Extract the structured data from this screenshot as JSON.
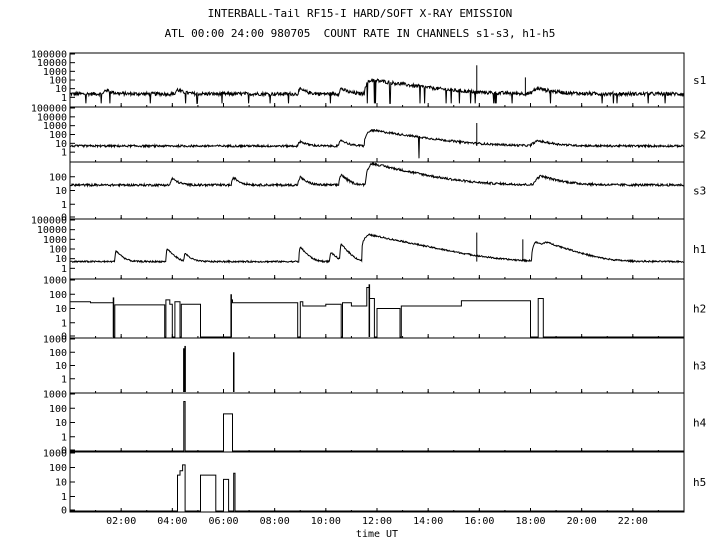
{
  "title": "INTERBALL-Tail RF15-I HARD/SOFT X-RAY EMISSION",
  "subtitle": "ATL 00:00 24:00 980705  COUNT RATE IN CHANNELS s1-s3, h1-h5",
  "chart_data": {
    "type": "line",
    "title": "INTERBALL-Tail RF15-I HARD/SOFT X-RAY EMISSION",
    "subtitle": "ATL 00:00 24:00 980705  COUNT RATE IN CHANNELS s1-s3, h1-h5",
    "xlabel": "time UT",
    "xlim_hours": [
      0,
      24
    ],
    "x_ticks": [
      "02:00",
      "04:00",
      "06:00",
      "08:00",
      "10:00",
      "12:00",
      "14:00",
      "16:00",
      "18:00",
      "20:00",
      "22:00"
    ],
    "x_tick_hours": [
      2,
      4,
      6,
      8,
      10,
      12,
      14,
      16,
      18,
      20,
      22
    ],
    "y_scale": "log",
    "grid": false,
    "panels": [
      {
        "name": "s1",
        "ylim": [
          0.1,
          100000
        ],
        "y_ticks": [
          "1",
          "10",
          "100",
          "1000",
          "10000",
          "100000"
        ],
        "style": "noisy",
        "base": 2.5,
        "noise": 1.6,
        "dip_rate": 0.02,
        "events": [
          {
            "t": 1.4,
            "peak": 5,
            "rise": 0.1,
            "decay": 0.2
          },
          {
            "t": 4.2,
            "peak": 5,
            "rise": 0.1,
            "decay": 0.2
          },
          {
            "t": 9.0,
            "peak": 6,
            "rise": 0.1,
            "decay": 0.2
          },
          {
            "t": 10.6,
            "peak": 8,
            "rise": 0.1,
            "decay": 0.2
          },
          {
            "t": 11.8,
            "peak": 100,
            "rise": 0.3,
            "decay": 1.0
          },
          {
            "t": 18.3,
            "peak": 8,
            "rise": 0.3,
            "decay": 0.5
          }
        ],
        "spikes": [
          {
            "t": 15.9,
            "v": 5000
          },
          {
            "t": 17.8,
            "v": 200
          }
        ]
      },
      {
        "name": "s2",
        "ylim": [
          0.1,
          100000
        ],
        "y_ticks": [
          "1",
          "10",
          "100",
          "1000",
          "10000",
          "100000"
        ],
        "style": "noisy",
        "base": 5,
        "noise": 1.3,
        "dip_rate": 0.002,
        "events": [
          {
            "t": 9.0,
            "peak": 12,
            "rise": 0.1,
            "decay": 0.2
          },
          {
            "t": 10.6,
            "peak": 18,
            "rise": 0.1,
            "decay": 0.2
          },
          {
            "t": 11.8,
            "peak": 300,
            "rise": 0.3,
            "decay": 1.0
          },
          {
            "t": 18.3,
            "peak": 14,
            "rise": 0.3,
            "decay": 0.5
          }
        ],
        "spikes": [
          {
            "t": 15.9,
            "v": 2000
          }
        ]
      },
      {
        "name": "s3",
        "ylim": [
          0.1,
          1000
        ],
        "y_ticks": [
          "0",
          "1",
          "10",
          "100"
        ],
        "style": "noisy",
        "base": 25,
        "noise": 1.2,
        "dip_rate": 0.0,
        "events": [
          {
            "t": 4.0,
            "peak": 50,
            "rise": 0.1,
            "decay": 0.2
          },
          {
            "t": 6.4,
            "peak": 60,
            "rise": 0.1,
            "decay": 0.2
          },
          {
            "t": 9.0,
            "peak": 70,
            "rise": 0.1,
            "decay": 0.2
          },
          {
            "t": 10.6,
            "peak": 120,
            "rise": 0.1,
            "decay": 0.2
          },
          {
            "t": 11.8,
            "peak": 900,
            "rise": 0.25,
            "decay": 1.0
          },
          {
            "t": 18.4,
            "peak": 90,
            "rise": 0.3,
            "decay": 0.6
          }
        ],
        "spikes": []
      },
      {
        "name": "h1",
        "ylim": [
          0.1,
          100000
        ],
        "y_ticks": [
          "1",
          "10",
          "100",
          "1000",
          "10000",
          "100000"
        ],
        "style": "noisy",
        "base": 5,
        "noise": 1.2,
        "dip_rate": 0.0,
        "events": [
          {
            "t": 1.8,
            "peak": 60,
            "rise": 0.05,
            "decay": 0.15
          },
          {
            "t": 3.8,
            "peak": 100,
            "rise": 0.05,
            "decay": 0.15
          },
          {
            "t": 4.5,
            "peak": 30,
            "rise": 0.05,
            "decay": 0.15
          },
          {
            "t": 9.0,
            "peak": 150,
            "rise": 0.05,
            "decay": 0.15
          },
          {
            "t": 10.2,
            "peak": 40,
            "rise": 0.05,
            "decay": 0.15
          },
          {
            "t": 10.6,
            "peak": 300,
            "rise": 0.05,
            "decay": 0.15
          },
          {
            "t": 11.7,
            "peak": 3000,
            "rise": 0.3,
            "decay": 0.8
          },
          {
            "t": 12.9,
            "peak": 60,
            "rise": 0.05,
            "decay": 0.15
          },
          {
            "t": 18.2,
            "peak": 500,
            "rise": 0.15,
            "decay": 0.5
          },
          {
            "t": 18.6,
            "peak": 300,
            "rise": 0.15,
            "decay": 0.5
          }
        ],
        "spikes": [
          {
            "t": 15.9,
            "v": 5000
          },
          {
            "t": 17.7,
            "v": 1000
          }
        ]
      },
      {
        "name": "h2",
        "ylim": [
          0.1,
          1000
        ],
        "y_ticks": [
          "0",
          "1",
          "10",
          "100",
          "1000"
        ],
        "style": "step",
        "steps": [
          [
            0,
            0.8,
            30
          ],
          [
            0.8,
            1.7,
            25
          ],
          [
            1.7,
            1.75,
            0.1
          ],
          [
            1.75,
            3.7,
            18
          ],
          [
            3.7,
            3.75,
            0.1
          ],
          [
            3.75,
            3.9,
            40
          ],
          [
            3.9,
            4.0,
            20
          ],
          [
            4.0,
            4.1,
            0.1
          ],
          [
            4.1,
            4.3,
            30
          ],
          [
            4.3,
            4.35,
            0.1
          ],
          [
            4.35,
            5.1,
            20
          ],
          [
            5.1,
            6.3,
            0.1
          ],
          [
            6.3,
            6.35,
            40
          ],
          [
            6.35,
            8.9,
            25
          ],
          [
            8.9,
            9.0,
            0.1
          ],
          [
            9.0,
            9.1,
            30
          ],
          [
            9.1,
            10.0,
            15
          ],
          [
            10.0,
            10.6,
            20
          ],
          [
            10.6,
            10.65,
            0.1
          ],
          [
            10.65,
            11.0,
            25
          ],
          [
            11.0,
            11.6,
            15
          ],
          [
            11.6,
            11.7,
            300
          ],
          [
            11.7,
            11.9,
            50
          ],
          [
            11.9,
            12.0,
            0.1
          ],
          [
            12.0,
            12.9,
            10
          ],
          [
            12.9,
            12.95,
            0.1
          ],
          [
            12.95,
            15.3,
            15
          ],
          [
            15.3,
            18.0,
            35
          ],
          [
            18.0,
            18.3,
            0.1
          ],
          [
            18.3,
            18.5,
            50
          ],
          [
            18.5,
            24,
            0.1
          ]
        ],
        "spikes": [
          {
            "t": 1.7,
            "v": 60
          },
          {
            "t": 6.3,
            "v": 100
          },
          {
            "t": 11.7,
            "v": 500
          }
        ]
      },
      {
        "name": "h3",
        "ylim": [
          0.1,
          1000
        ],
        "y_ticks": [
          "1",
          "10",
          "100",
          "1000"
        ],
        "style": "sticks",
        "sticks": [
          {
            "t": 4.45,
            "v": 200
          },
          {
            "t": 4.5,
            "v": 300
          },
          {
            "t": 6.4,
            "v": 100
          }
        ]
      },
      {
        "name": "h4",
        "ylim": [
          0.1,
          1000
        ],
        "y_ticks": [
          "0",
          "1",
          "10",
          "100",
          "1000"
        ],
        "style": "step",
        "steps": [
          [
            0,
            4.45,
            0.1
          ],
          [
            4.45,
            4.5,
            300
          ],
          [
            4.5,
            6.0,
            0.1
          ],
          [
            6.0,
            6.35,
            40
          ],
          [
            6.35,
            24,
            0.1
          ]
        ],
        "spikes": []
      },
      {
        "name": "h5",
        "ylim": [
          0.1,
          1000
        ],
        "y_ticks": [
          "0",
          "1",
          "10",
          "100",
          "1000"
        ],
        "style": "step",
        "steps": [
          [
            0,
            4.2,
            0.1
          ],
          [
            4.2,
            4.3,
            30
          ],
          [
            4.3,
            4.4,
            60
          ],
          [
            4.4,
            4.5,
            150
          ],
          [
            4.5,
            5.1,
            0.1
          ],
          [
            5.1,
            5.7,
            30
          ],
          [
            5.7,
            6.0,
            0.1
          ],
          [
            6.0,
            6.2,
            15
          ],
          [
            6.2,
            6.4,
            0.1
          ],
          [
            6.4,
            6.45,
            40
          ],
          [
            6.45,
            24,
            0.1
          ]
        ],
        "spikes": []
      }
    ]
  }
}
